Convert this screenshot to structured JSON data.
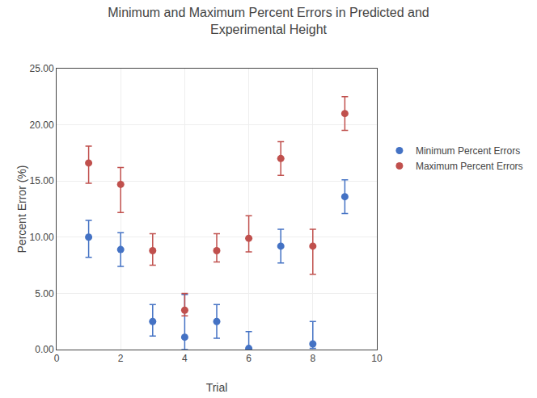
{
  "chart_data": {
    "type": "scatter",
    "title": "Minimum and Maximum Percent Errors in Predicted and\nExperimental Height",
    "x_label": "Trial",
    "y_label": "Percent Error (%)",
    "x": [
      1,
      2,
      3,
      4,
      5,
      6,
      7,
      8,
      9
    ],
    "series": [
      {
        "name": "Minimum Percent Errors",
        "color": "#4472C4",
        "marker": "circle",
        "values": [
          10.0,
          8.9,
          2.5,
          1.1,
          2.5,
          0.1,
          9.2,
          0.5,
          13.6
        ],
        "error_lower": [
          1.8,
          1.5,
          1.3,
          1.1,
          1.5,
          0.1,
          1.5,
          0.4,
          1.5
        ],
        "error_upper": [
          1.5,
          1.5,
          1.5,
          3.8,
          1.5,
          1.5,
          1.5,
          2.0,
          1.5
        ]
      },
      {
        "name": "Maximum Percent Errors",
        "color": "#C0504D",
        "marker": "circle",
        "values": [
          16.6,
          14.7,
          8.8,
          3.5,
          8.8,
          9.9,
          17.0,
          9.2,
          21.0
        ],
        "error_lower": [
          1.8,
          2.5,
          1.3,
          0.5,
          1.0,
          1.2,
          1.5,
          2.5,
          1.5
        ],
        "error_upper": [
          1.5,
          1.5,
          1.5,
          1.5,
          1.5,
          2.0,
          1.5,
          1.5,
          1.5
        ]
      }
    ],
    "xlim": [
      0,
      10
    ],
    "ylim": [
      0.0,
      25.0
    ],
    "xticks": [
      0,
      2,
      4,
      6,
      8,
      10
    ],
    "yticks": [
      {
        "value": 0.0,
        "label": "0.00"
      },
      {
        "value": 5.0,
        "label": "5.00"
      },
      {
        "value": 10.0,
        "label": "10.00"
      },
      {
        "value": 15.0,
        "label": "15.00"
      },
      {
        "value": 20.0,
        "label": "20.00"
      },
      {
        "value": 25.0,
        "label": "25.00"
      }
    ],
    "grid": true,
    "legend": "right"
  }
}
